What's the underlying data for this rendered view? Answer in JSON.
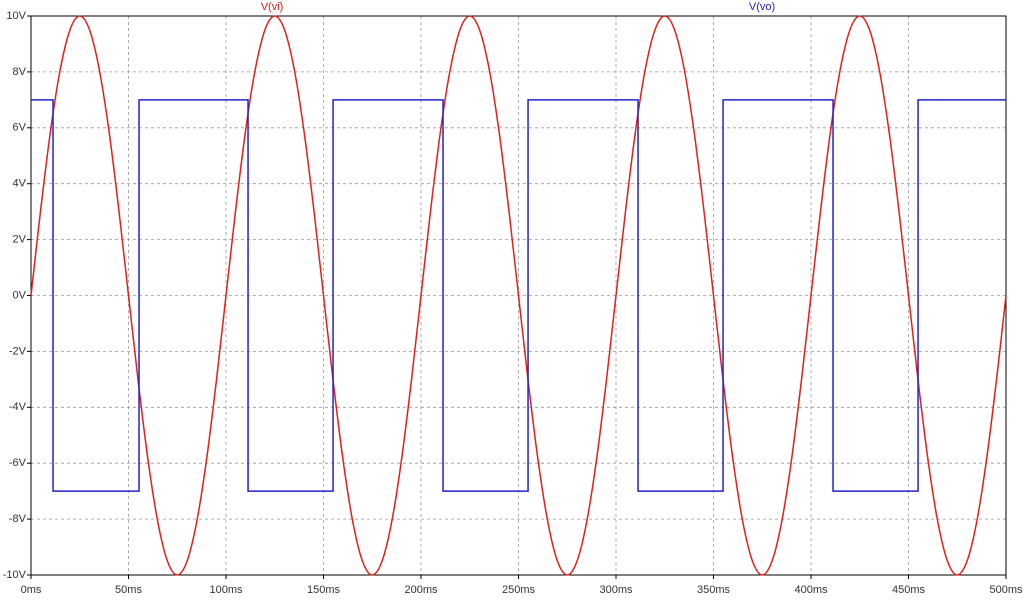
{
  "chart_data": {
    "type": "line",
    "series": [
      {
        "name": "V(vi)",
        "color": "#e0201b",
        "x": [
          0,
          5,
          10,
          15,
          20,
          25,
          30,
          35,
          40,
          45,
          50,
          55,
          60,
          65,
          70,
          75,
          80,
          85,
          90,
          95,
          100,
          105,
          110,
          115,
          120,
          125,
          130,
          135,
          140,
          145,
          150,
          155,
          160,
          165,
          170,
          175,
          180,
          185,
          190,
          195,
          200,
          205,
          210,
          215,
          220,
          225,
          230,
          235,
          240,
          245,
          250,
          255,
          260,
          265,
          270,
          275,
          280,
          285,
          290,
          295,
          300,
          305,
          310,
          315,
          320,
          325,
          330,
          335,
          340,
          345,
          350,
          355,
          360,
          365,
          370,
          375,
          380,
          385,
          390,
          395,
          400,
          405,
          410,
          415,
          420,
          425,
          430,
          435,
          440,
          445,
          450,
          455,
          460,
          465,
          470,
          475,
          480,
          485,
          490,
          495,
          500
        ],
        "values": [
          0,
          3.09,
          5.88,
          8.09,
          9.51,
          10,
          9.51,
          8.09,
          5.88,
          3.09,
          0,
          -3.09,
          -5.88,
          -8.09,
          -9.51,
          -10,
          -9.51,
          -8.09,
          -5.88,
          -3.09,
          0,
          3.09,
          5.88,
          8.09,
          9.51,
          10,
          9.51,
          8.09,
          5.88,
          3.09,
          0,
          -3.09,
          -5.88,
          -8.09,
          -9.51,
          -10,
          -9.51,
          -8.09,
          -5.88,
          -3.09,
          0,
          3.09,
          5.88,
          8.09,
          9.51,
          10,
          9.51,
          8.09,
          5.88,
          3.09,
          0,
          -3.09,
          -5.88,
          -8.09,
          -9.51,
          -10,
          -9.51,
          -8.09,
          -5.88,
          -3.09,
          0,
          3.09,
          5.88,
          8.09,
          9.51,
          10,
          9.51,
          8.09,
          5.88,
          3.09,
          0,
          -3.09,
          -5.88,
          -8.09,
          -9.51,
          -10,
          -9.51,
          -8.09,
          -5.88,
          -3.09,
          0,
          3.09,
          5.88,
          8.09,
          9.51,
          10,
          9.51,
          8.09,
          5.88,
          3.09,
          0,
          -3.09,
          -5.88,
          -8.09,
          -9.51,
          -10,
          -9.51,
          -8.09,
          -5.88,
          -3.09,
          0
        ]
      },
      {
        "name": "V(vo)",
        "color": "#2323cc",
        "x": [
          0,
          11.3,
          11.3,
          55.4,
          55.4,
          111.3,
          111.3,
          154.9,
          154.9,
          211.3,
          211.3,
          254.9,
          254.9,
          311.3,
          311.3,
          354.9,
          354.9,
          411.3,
          411.3,
          454.9,
          454.9,
          500
        ],
        "values": [
          7,
          7,
          -7,
          -7,
          7,
          7,
          -7,
          -7,
          7,
          7,
          -7,
          -7,
          7,
          7,
          -7,
          -7,
          7,
          7,
          -7,
          -7,
          7,
          7
        ]
      }
    ],
    "xlim": [
      0,
      500
    ],
    "xticks": [
      {
        "value": 0,
        "label": "0ms"
      },
      {
        "value": 50,
        "label": "50ms"
      },
      {
        "value": 100,
        "label": "100ms"
      },
      {
        "value": 150,
        "label": "150ms"
      },
      {
        "value": 200,
        "label": "200ms"
      },
      {
        "value": 250,
        "label": "250ms"
      },
      {
        "value": 300,
        "label": "300ms"
      },
      {
        "value": 350,
        "label": "350ms"
      },
      {
        "value": 400,
        "label": "400ms"
      },
      {
        "value": 450,
        "label": "450ms"
      },
      {
        "value": 500,
        "label": "500ms"
      }
    ],
    "ylim": [
      -10,
      10
    ],
    "yticks": [
      {
        "value": -10,
        "label": "-10V"
      },
      {
        "value": -8,
        "label": "-8V"
      },
      {
        "value": -6,
        "label": "-6V"
      },
      {
        "value": -4,
        "label": "-4V"
      },
      {
        "value": -2,
        "label": "-2V"
      },
      {
        "value": 0,
        "label": "0V"
      },
      {
        "value": 2,
        "label": "2V"
      },
      {
        "value": 4,
        "label": "4V"
      },
      {
        "value": 6,
        "label": "6V"
      },
      {
        "value": 8,
        "label": "8V"
      },
      {
        "value": 10,
        "label": "10V"
      }
    ],
    "grid": true
  }
}
